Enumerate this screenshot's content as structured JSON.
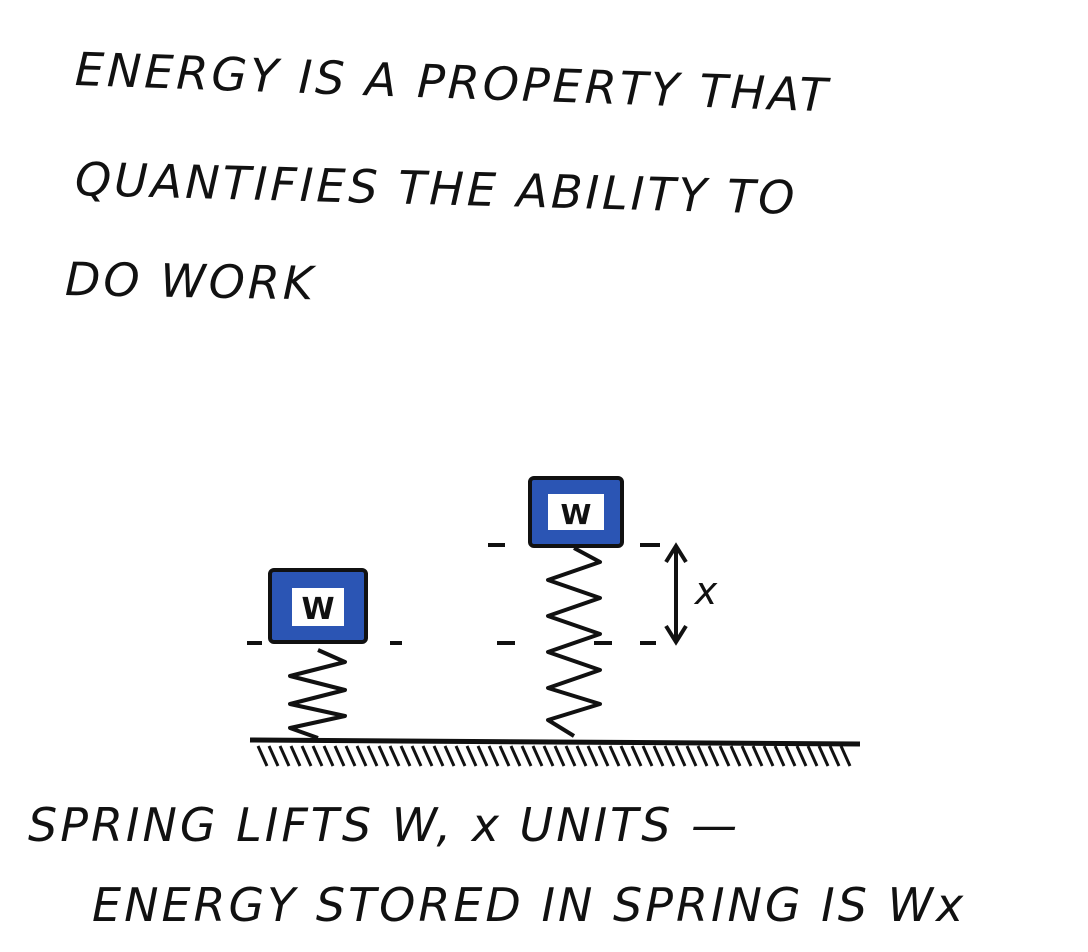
{
  "heading": {
    "line1": "ENERGY IS A PROPERTY THAT",
    "line2": "QUANTIFIES THE ABILITY TO",
    "line3": "DO WORK"
  },
  "diagram": {
    "block_label_left": "W",
    "block_label_right": "W",
    "displacement_label": "x",
    "block_color": "#2b55b4"
  },
  "caption": {
    "line1": "SPRING LIFTS W, x UNITS —",
    "line2": "ENERGY STORED IN SPRING IS Wx"
  }
}
